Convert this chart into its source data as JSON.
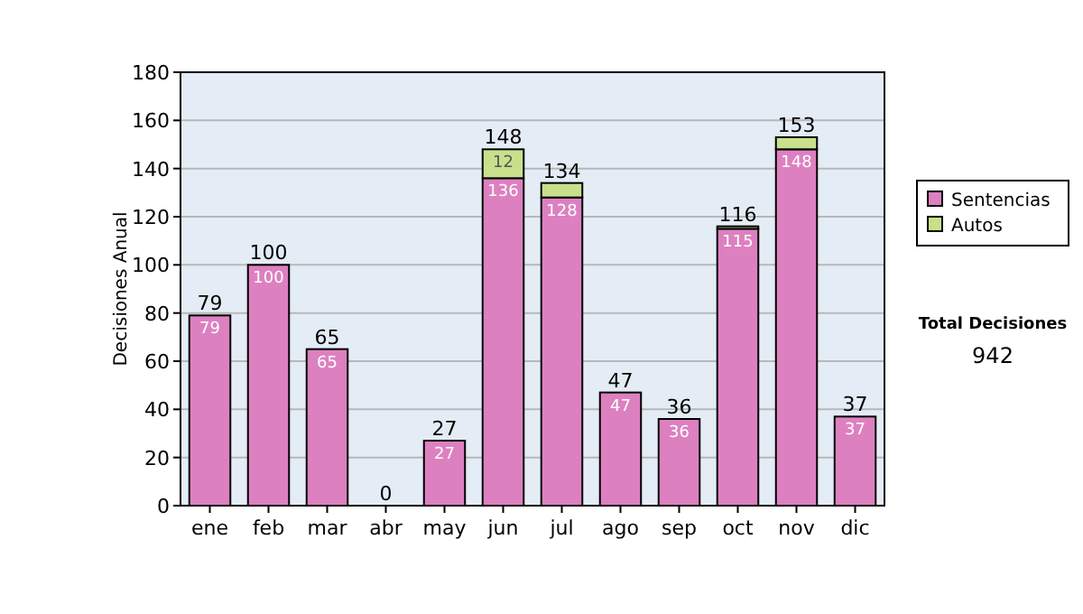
{
  "chart_data": {
    "type": "bar",
    "ylabel": "Decisiones Anual",
    "categories": [
      "ene",
      "feb",
      "mar",
      "abr",
      "may",
      "jun",
      "jul",
      "ago",
      "sep",
      "oct",
      "nov",
      "dic"
    ],
    "stacked": true,
    "series": [
      {
        "name": "Sentencias",
        "color": "#dd80c0",
        "values": [
          79,
          100,
          65,
          0,
          27,
          136,
          128,
          47,
          36,
          115,
          148,
          37
        ],
        "value_labels": [
          "79",
          "100",
          "65",
          null,
          "27",
          "136",
          "128",
          "47",
          "36",
          "115",
          "148",
          "37"
        ]
      },
      {
        "name": "Autos",
        "color": "#c8e08c",
        "values": [
          0,
          0,
          0,
          0,
          0,
          12,
          6,
          0,
          0,
          1,
          5,
          0
        ],
        "value_labels": [
          null,
          null,
          null,
          null,
          null,
          "12",
          null,
          null,
          null,
          null,
          null,
          null
        ]
      }
    ],
    "totals": [
      "79",
      "100",
      "65",
      "0",
      "27",
      "148",
      "134",
      "47",
      "36",
      "116",
      "153",
      "37"
    ],
    "ylim": [
      0,
      180
    ],
    "yticks": [
      0,
      20,
      40,
      60,
      80,
      100,
      120,
      140,
      160,
      180
    ],
    "grid": "y",
    "legend": "right",
    "annotations": [
      "Total Decisiones",
      "942"
    ]
  }
}
